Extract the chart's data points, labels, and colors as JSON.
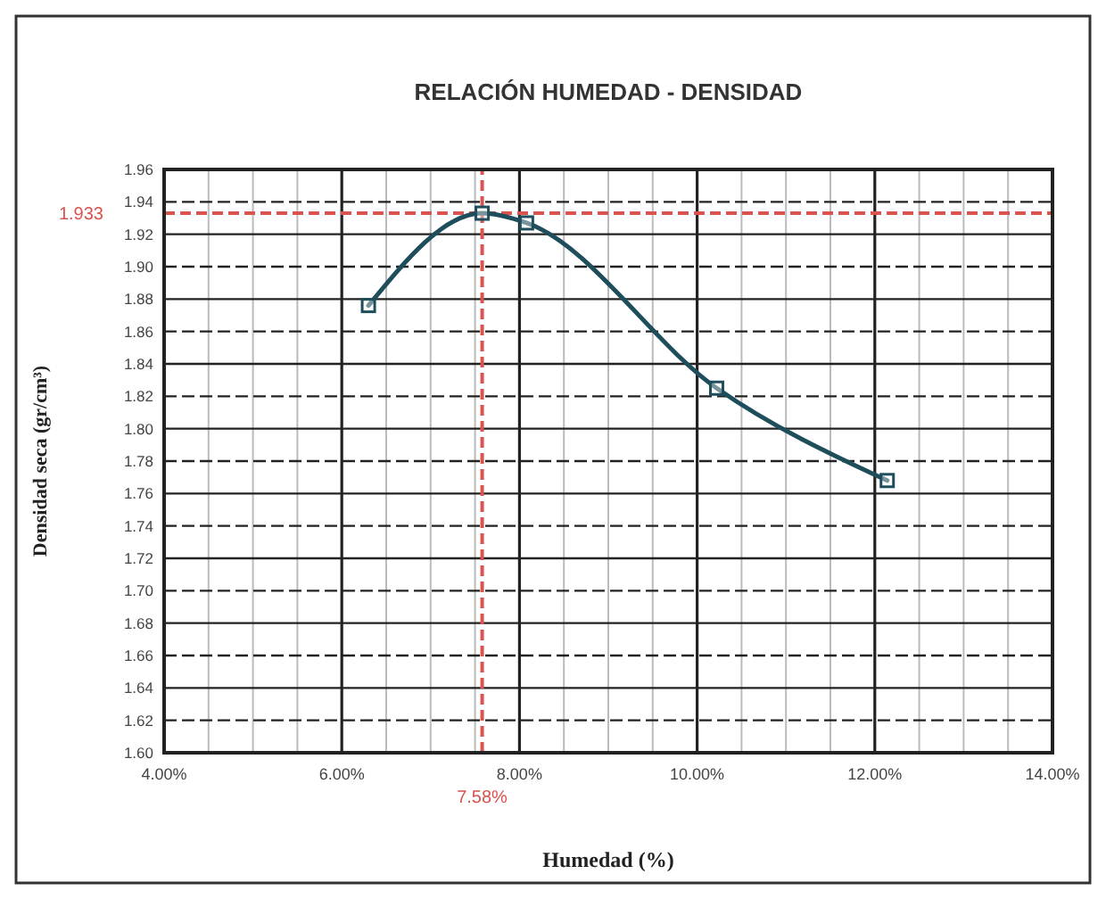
{
  "chart_data": {
    "type": "line",
    "title": "RELACIÓN HUMEDAD - DENSIDAD",
    "xlabel": "Humedad (%)",
    "ylabel": "Densidad seca (gr/cm³)",
    "series": [
      {
        "color": "#1e4d5c",
        "x": [
          6.3,
          7.58,
          8.08,
          10.22,
          12.14
        ],
        "values": [
          1.876,
          1.933,
          1.927,
          1.825,
          1.768
        ]
      }
    ],
    "marker": "square",
    "line_style": "solid",
    "grid": true,
    "xlim": [
      4,
      14
    ],
    "xticks": [
      {
        "value": 4,
        "label": "4.00%"
      },
      {
        "value": 6,
        "label": "6.00%"
      },
      {
        "value": 8,
        "label": "8.00%"
      },
      {
        "value": 10,
        "label": "10.00%"
      },
      {
        "value": 12,
        "label": "12.00%"
      },
      {
        "value": 14,
        "label": "14.00%"
      }
    ],
    "ylim": [
      1.6,
      1.96
    ],
    "yticks": [
      {
        "value": 1.6,
        "label": "1.60"
      },
      {
        "value": 1.62,
        "label": "1.62"
      },
      {
        "value": 1.64,
        "label": "1.64"
      },
      {
        "value": 1.66,
        "label": "1.66"
      },
      {
        "value": 1.68,
        "label": "1.68"
      },
      {
        "value": 1.7,
        "label": "1.70"
      },
      {
        "value": 1.72,
        "label": "1.72"
      },
      {
        "value": 1.74,
        "label": "1.74"
      },
      {
        "value": 1.76,
        "label": "1.76"
      },
      {
        "value": 1.78,
        "label": "1.78"
      },
      {
        "value": 1.8,
        "label": "1.80"
      },
      {
        "value": 1.82,
        "label": "1.82"
      },
      {
        "value": 1.84,
        "label": "1.84"
      },
      {
        "value": 1.86,
        "label": "1.86"
      },
      {
        "value": 1.88,
        "label": "1.88"
      },
      {
        "value": 1.9,
        "label": "1.90"
      },
      {
        "value": 1.92,
        "label": "1.92"
      },
      {
        "value": 1.94,
        "label": "1.94"
      },
      {
        "value": 1.96,
        "label": "1.96"
      }
    ],
    "ref_lines": [
      {
        "axis": "x",
        "value": 7.58,
        "label": "7.58%",
        "color": "#d9534f",
        "line_style": "dashed"
      },
      {
        "axis": "y",
        "value": 1.933,
        "label": "1.933",
        "color": "#d9534f",
        "line_style": "dashed"
      }
    ]
  }
}
